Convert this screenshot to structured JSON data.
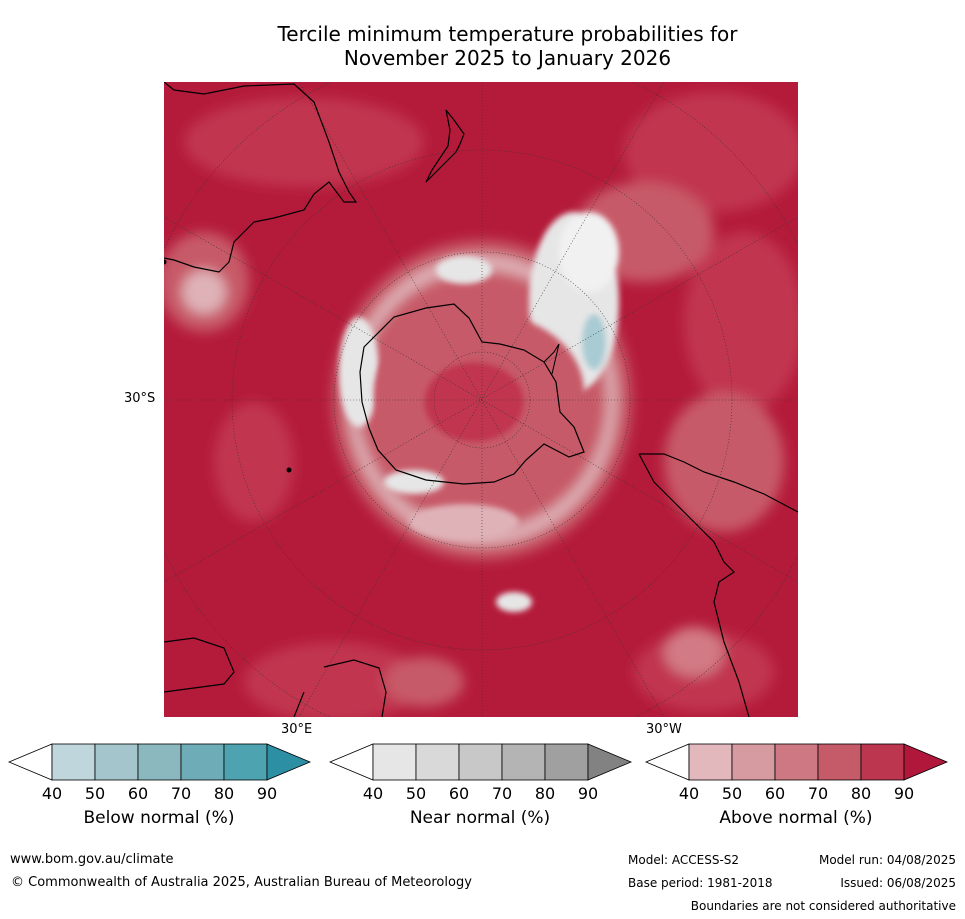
{
  "title_line1": "Tercile minimum temperature probabilities for",
  "title_line2": "November 2025 to January 2026",
  "map": {
    "lat_label": "30°S",
    "lon_label_east": "30°E",
    "lon_label_west": "30°W",
    "colors": {
      "dominant_above": "#b41b3a",
      "above_80": "#c13550",
      "above_70": "#c75a68",
      "above_60": "#d27a85",
      "above_50": "#dfb2b8",
      "near_normal": "#e6e6e6",
      "below_normal": "#a9cbd3"
    }
  },
  "colorbars": [
    {
      "label": "Below normal (%)",
      "ticks": [
        "40",
        "50",
        "60",
        "70",
        "80",
        "90"
      ],
      "colors": [
        "#ffffff",
        "#bed6dc",
        "#a5c5cc",
        "#8bb7bf",
        "#6eadb8",
        "#4ea3b1",
        "#2d8fa3"
      ]
    },
    {
      "label": "Near normal (%)",
      "ticks": [
        "40",
        "50",
        "60",
        "70",
        "80",
        "90"
      ],
      "colors": [
        "#ffffff",
        "#e6e6e6",
        "#d9d9d9",
        "#c8c8c8",
        "#b4b4b4",
        "#a0a0a0",
        "#828282"
      ]
    },
    {
      "label": "Above normal (%)",
      "ticks": [
        "40",
        "50",
        "60",
        "70",
        "80",
        "90"
      ],
      "colors": [
        "#ffffff",
        "#e3b8bd",
        "#d69aa1",
        "#cd7882",
        "#c55a69",
        "#bc3650",
        "#b0173a"
      ]
    }
  ],
  "footer": {
    "url": "www.bom.gov.au/climate",
    "copyright": "© Commonwealth of Australia 2025, Australian Bureau of Meteorology",
    "model": "Model: ACCESS-S2",
    "model_run": "Model run: 04/08/2025",
    "base_period": "Base period: 1981-2018",
    "issued": "Issued: 06/08/2025",
    "disclaimer": "Boundaries are not considered authoritative"
  }
}
